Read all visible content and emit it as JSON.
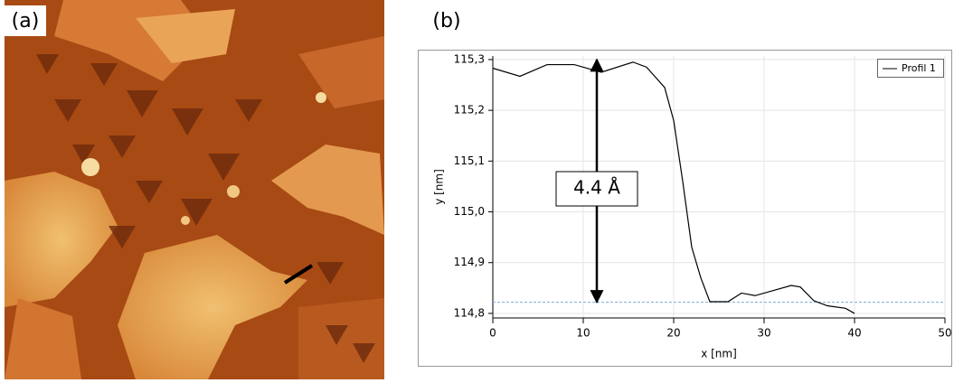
{
  "panels": {
    "a": "(a)",
    "b": "(b)"
  },
  "chart_data": {
    "type": "line",
    "x": [
      0,
      3,
      6,
      9,
      12,
      15.5,
      17,
      19,
      20,
      21,
      22,
      23,
      24,
      25,
      26,
      27.5,
      29,
      31,
      33,
      34,
      35.5,
      37,
      39,
      40
    ],
    "series": [
      {
        "name": "Profil 1",
        "color": "#000000",
        "values": [
          115.283,
          115.267,
          115.29,
          115.29,
          115.275,
          115.295,
          115.285,
          115.245,
          115.18,
          115.06,
          114.93,
          114.87,
          114.823,
          114.823,
          114.823,
          114.84,
          114.835,
          114.845,
          114.855,
          114.852,
          114.825,
          114.815,
          114.81,
          114.8
        ]
      }
    ],
    "xlim": [
      0,
      50
    ],
    "ylim": [
      114.791,
      115.307
    ],
    "xticks": [
      0,
      10,
      20,
      30,
      40,
      50
    ],
    "yticks": [
      {
        "value": 114.8,
        "label": "114,8"
      },
      {
        "value": 114.9,
        "label": "114,9"
      },
      {
        "value": 115.0,
        "label": "115,0"
      },
      {
        "value": 115.1,
        "label": "115,1"
      },
      {
        "value": 115.2,
        "label": "115,2"
      },
      {
        "value": 115.3,
        "label": "115,3"
      }
    ],
    "xlabel": "x [nm]",
    "ylabel": "y [nm]",
    "grid": true,
    "legend": "upper right",
    "reference_line": {
      "y": 114.822,
      "color": "#7fa9d8"
    },
    "annotation": {
      "text": "4.4 Å",
      "x": 11.5,
      "y_from": 115.3,
      "y_to": 114.822
    }
  }
}
